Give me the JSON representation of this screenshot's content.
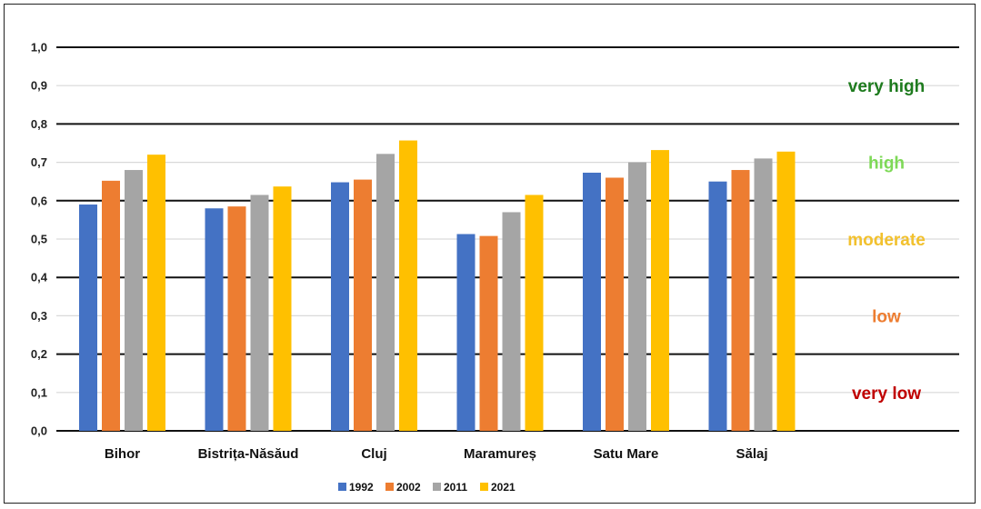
{
  "chart_data": {
    "type": "bar",
    "categories": [
      "Bihor",
      "Bistrița-Năsăud",
      "Cluj",
      "Maramureș",
      "Satu Mare",
      "Sălaj"
    ],
    "series": [
      {
        "name": "1992",
        "color": "#4472C4",
        "values": [
          0.59,
          0.58,
          0.648,
          0.513,
          0.673,
          0.65
        ]
      },
      {
        "name": "2002",
        "color": "#ED7D31",
        "values": [
          0.652,
          0.585,
          0.655,
          0.508,
          0.66,
          0.68
        ]
      },
      {
        "name": "2011",
        "color": "#A5A5A5",
        "values": [
          0.68,
          0.615,
          0.722,
          0.57,
          0.7,
          0.71
        ]
      },
      {
        "name": "2021",
        "color": "#FFC000",
        "values": [
          0.72,
          0.637,
          0.757,
          0.615,
          0.732,
          0.728
        ]
      }
    ],
    "ylim": [
      0,
      1.0
    ],
    "yticks": [
      "0,0",
      "0,1",
      "0,2",
      "0,3",
      "0,4",
      "0,5",
      "0,6",
      "0,7",
      "0,8",
      "0,9",
      "1,0"
    ],
    "major_gridlines": [
      0.0,
      0.2,
      0.4,
      0.6,
      0.8,
      1.0
    ],
    "minor_gridlines": [
      0.1,
      0.3,
      0.5,
      0.7,
      0.9
    ],
    "bands": [
      {
        "label": "very high",
        "color": "#1E7B1E",
        "value": 0.9
      },
      {
        "label": "high",
        "color": "#7ED957",
        "value": 0.7
      },
      {
        "label": "moderate",
        "color": "#F2C12E",
        "value": 0.5
      },
      {
        "label": "low",
        "color": "#ED7D31",
        "value": 0.3
      },
      {
        "label": "very low",
        "color": "#C00000",
        "value": 0.1
      }
    ],
    "legend_position": "bottom"
  }
}
